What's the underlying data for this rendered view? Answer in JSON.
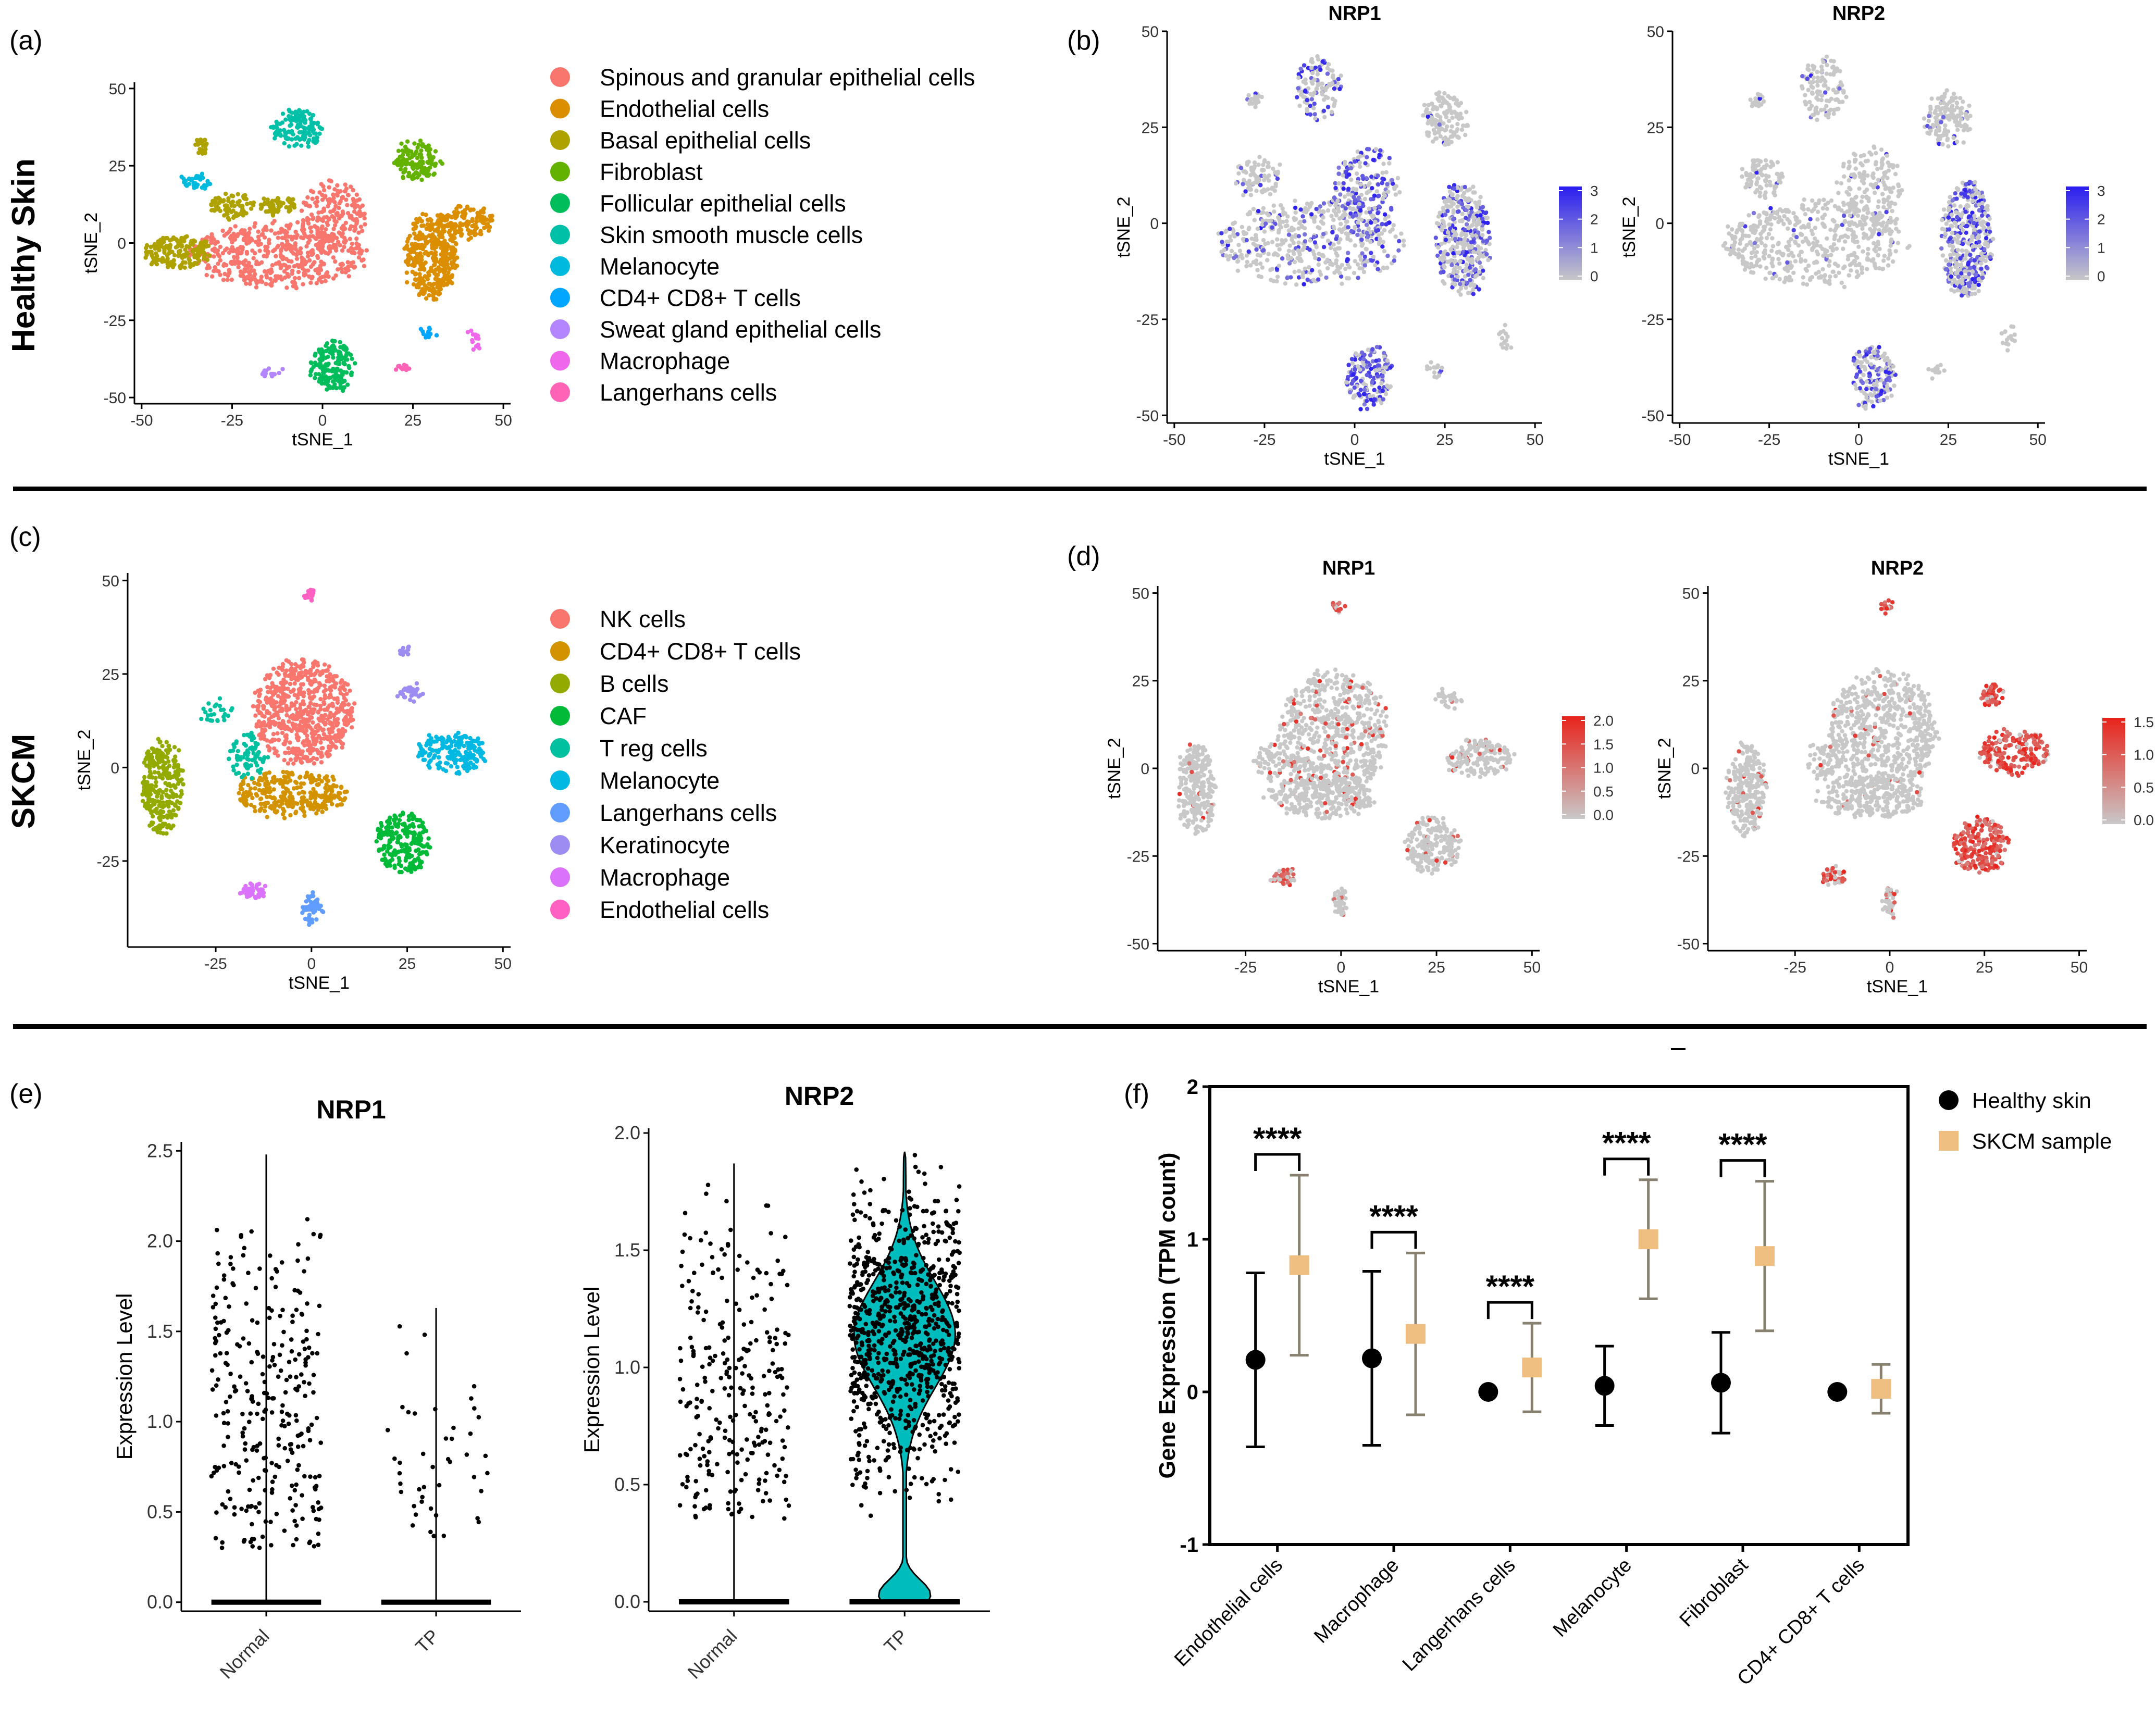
{
  "panel_labels": {
    "a": "(a)",
    "b": "(b)",
    "c": "(c)",
    "d": "(d)",
    "e": "(e)",
    "f": "(f)"
  },
  "row_labels": {
    "healthy": "Healthy Skin",
    "skcm": "SKCM"
  },
  "colors": {
    "grey": "#c8c8c8",
    "blue_high": "#2a1df0",
    "red_high": "#e8231b",
    "teal": "#00bdbd",
    "tan": "#efbf82",
    "olive": "#87806e"
  },
  "chart_data": [
    {
      "id": "a",
      "type": "scatter",
      "title": "",
      "xlabel": "tSNE_1",
      "ylabel": "tSNE_2",
      "xlim": [
        -52,
        52
      ],
      "ylim": [
        -52,
        52
      ],
      "xticks": [
        -50,
        -25,
        0,
        25,
        50
      ],
      "yticks": [
        50,
        25,
        0,
        -25,
        -50
      ],
      "legend": [
        {
          "name": "Spinous and granular epithelial cells",
          "color": "#f8766d"
        },
        {
          "name": "Endothelial cells",
          "color": "#db8e00"
        },
        {
          "name": "Basal epithelial cells",
          "color": "#aea200"
        },
        {
          "name": "Fibroblast",
          "color": "#64b200"
        },
        {
          "name": "Follicular epithelial cells",
          "color": "#00bd5c"
        },
        {
          "name": "Skin smooth muscle cells",
          "color": "#00c1a7"
        },
        {
          "name": "Melanocyte",
          "color": "#00bade"
        },
        {
          "name": "CD4+ CD8+ T cells",
          "color": "#00a6ff"
        },
        {
          "name": "Sweat gland epithelial cells",
          "color": "#b385ff"
        },
        {
          "name": "Macrophage",
          "color": "#ef67eb"
        },
        {
          "name": "Langerhans cells",
          "color": "#ff63b6"
        }
      ],
      "clusters": [
        {
          "cx": -12,
          "cy": -4,
          "rx": 25,
          "ry": 10,
          "n": 480,
          "c": 0
        },
        {
          "cx": 3,
          "cy": 8,
          "rx": 9,
          "ry": 12,
          "n": 200,
          "c": 0
        },
        {
          "cx": 30,
          "cy": -4,
          "rx": 7,
          "ry": 14,
          "n": 380,
          "c": 1
        },
        {
          "cx": 40,
          "cy": 7,
          "rx": 7,
          "ry": 5,
          "n": 120,
          "c": 1
        },
        {
          "cx": -40,
          "cy": -3,
          "rx": 9,
          "ry": 5,
          "n": 190,
          "c": 2
        },
        {
          "cx": -25,
          "cy": 12,
          "rx": 6,
          "ry": 4,
          "n": 80,
          "c": 2
        },
        {
          "cx": -12,
          "cy": 12,
          "rx": 5,
          "ry": 3,
          "n": 60,
          "c": 2
        },
        {
          "cx": -33,
          "cy": 32,
          "rx": 2,
          "ry": 3,
          "n": 25,
          "c": 2
        },
        {
          "cx": 26,
          "cy": 27,
          "rx": 6,
          "ry": 7,
          "n": 130,
          "c": 3
        },
        {
          "cx": 3,
          "cy": -40,
          "rx": 6,
          "ry": 8,
          "n": 170,
          "c": 4
        },
        {
          "cx": -7,
          "cy": 37,
          "rx": 7,
          "ry": 6,
          "n": 130,
          "c": 5
        },
        {
          "cx": -35,
          "cy": 20,
          "rx": 5,
          "ry": 2,
          "n": 35,
          "c": 6
        },
        {
          "cx": 29,
          "cy": -29,
          "rx": 2,
          "ry": 2,
          "n": 15,
          "c": 7
        },
        {
          "cx": -14,
          "cy": -42,
          "rx": 3,
          "ry": 1,
          "n": 15,
          "c": 8
        },
        {
          "cx": 42,
          "cy": -31,
          "rx": 1.5,
          "ry": 3,
          "n": 15,
          "c": 9
        },
        {
          "cx": 22,
          "cy": -40,
          "rx": 1.5,
          "ry": 1.2,
          "n": 12,
          "c": 10
        }
      ]
    },
    {
      "id": "b",
      "type": "scatter",
      "title": "NRP1",
      "xlabel": "tSNE_1",
      "ylabel": "tSNE_2",
      "xlim": [
        -52,
        52
      ],
      "ylim": [
        -52,
        50
      ],
      "xticks": [
        -50,
        -25,
        0,
        25,
        50
      ],
      "yticks": [
        50,
        25,
        0,
        -25,
        -50
      ],
      "colorbar": {
        "ticks": [
          "3",
          "2",
          "1",
          "0"
        ],
        "low": "#c8c8c8",
        "high": "#2a1df0"
      },
      "hi": [
        0.25,
        0.55,
        0.35,
        0.15,
        0.35,
        0.05,
        0.05,
        0.6,
        0.05,
        0.05
      ],
      "clusters": [
        {
          "cx": -12,
          "cy": -5,
          "rx": 26,
          "ry": 11,
          "n": 480
        },
        {
          "cx": 3,
          "cy": 8,
          "rx": 9,
          "ry": 12,
          "n": 200
        },
        {
          "cx": 30,
          "cy": -4,
          "rx": 7,
          "ry": 15,
          "n": 420
        },
        {
          "cx": -27,
          "cy": 12,
          "rx": 6,
          "ry": 5,
          "n": 90
        },
        {
          "cx": -10,
          "cy": 35,
          "rx": 6,
          "ry": 8,
          "n": 120
        },
        {
          "cx": 25,
          "cy": 27,
          "rx": 6,
          "ry": 7,
          "n": 140
        },
        {
          "cx": -28,
          "cy": 32,
          "rx": 2,
          "ry": 2,
          "n": 20
        },
        {
          "cx": 4,
          "cy": -40,
          "rx": 6,
          "ry": 8,
          "n": 170
        },
        {
          "cx": 22,
          "cy": -38,
          "rx": 2,
          "ry": 2,
          "n": 15
        },
        {
          "cx": 42,
          "cy": -30,
          "rx": 1.5,
          "ry": 3,
          "n": 15
        }
      ]
    },
    {
      "id": "b2",
      "type": "scatter",
      "title": "NRP2",
      "xlabel": "tSNE_1",
      "ylabel": "tSNE_2",
      "xlim": [
        -52,
        52
      ],
      "ylim": [
        -52,
        50
      ],
      "xticks": [
        -50,
        -25,
        0,
        25,
        50
      ],
      "yticks": [
        50,
        25,
        0,
        -25,
        -50
      ],
      "colorbar": {
        "ticks": [
          "3",
          "2",
          "1",
          "0"
        ],
        "low": "#c8c8c8",
        "high": "#2a1df0"
      },
      "hi": [
        0.03,
        0.05,
        0.5,
        0.05,
        0.1,
        0.05,
        0.05,
        0.45,
        0.05,
        0.3
      ],
      "clusters": [
        {
          "cx": -12,
          "cy": -5,
          "rx": 26,
          "ry": 11,
          "n": 480
        },
        {
          "cx": 3,
          "cy": 8,
          "rx": 9,
          "ry": 12,
          "n": 200
        },
        {
          "cx": 30,
          "cy": -4,
          "rx": 7,
          "ry": 15,
          "n": 420
        },
        {
          "cx": -27,
          "cy": 12,
          "rx": 6,
          "ry": 5,
          "n": 90
        },
        {
          "cx": -10,
          "cy": 35,
          "rx": 6,
          "ry": 8,
          "n": 120
        },
        {
          "cx": 25,
          "cy": 27,
          "rx": 6,
          "ry": 7,
          "n": 140
        },
        {
          "cx": -28,
          "cy": 32,
          "rx": 2,
          "ry": 2,
          "n": 20
        },
        {
          "cx": 4,
          "cy": -40,
          "rx": 6,
          "ry": 8,
          "n": 170
        },
        {
          "cx": 22,
          "cy": -38,
          "rx": 2,
          "ry": 2,
          "n": 15
        },
        {
          "cx": 42,
          "cy": -30,
          "rx": 1.5,
          "ry": 3,
          "n": 15
        }
      ]
    },
    {
      "id": "c",
      "type": "scatter",
      "title": "",
      "xlabel": "tSNE_1",
      "ylabel": "tSNE_2",
      "xlim": [
        -48,
        52
      ],
      "ylim": [
        -48,
        52
      ],
      "xticks": [
        -25,
        0,
        25,
        50
      ],
      "yticks": [
        50,
        25,
        0,
        -25
      ],
      "legend": [
        {
          "name": "NK cells",
          "color": "#f8766d"
        },
        {
          "name": "CD4+ CD8+ T cells",
          "color": "#d39200"
        },
        {
          "name": "B cells",
          "color": "#93aa00"
        },
        {
          "name": "CAF",
          "color": "#00ba38"
        },
        {
          "name": "T reg cells",
          "color": "#00c19f"
        },
        {
          "name": "Melanocyte",
          "color": "#00b9e3"
        },
        {
          "name": "Langerhans cells",
          "color": "#619cff"
        },
        {
          "name": "Keratinocyte",
          "color": "#9d8cf2"
        },
        {
          "name": "Macrophage",
          "color": "#db72fb"
        },
        {
          "name": "Endothelial cells",
          "color": "#ff61c3"
        }
      ],
      "clusters": [
        {
          "cx": -2,
          "cy": 15,
          "rx": 13,
          "ry": 14,
          "n": 650,
          "c": 0
        },
        {
          "cx": -5,
          "cy": -7,
          "rx": 14,
          "ry": 6,
          "n": 300,
          "c": 1
        },
        {
          "cx": -39,
          "cy": -5,
          "rx": 5,
          "ry": 13,
          "n": 280,
          "c": 2
        },
        {
          "cx": 24,
          "cy": -20,
          "rx": 7,
          "ry": 8,
          "n": 220,
          "c": 3
        },
        {
          "cx": -17,
          "cy": 3,
          "rx": 5,
          "ry": 6,
          "n": 80,
          "c": 4
        },
        {
          "cx": -25,
          "cy": 15,
          "rx": 4,
          "ry": 3,
          "n": 25,
          "c": 4
        },
        {
          "cx": 37,
          "cy": 4,
          "rx": 9,
          "ry": 5,
          "n": 200,
          "c": 5
        },
        {
          "cx": 0,
          "cy": -38,
          "rx": 2,
          "ry": 4,
          "n": 55,
          "c": 6
        },
        {
          "cx": 26,
          "cy": 20,
          "rx": 3,
          "ry": 2,
          "n": 35,
          "c": 7
        },
        {
          "cx": 24,
          "cy": 31,
          "rx": 1.5,
          "ry": 1,
          "n": 12,
          "c": 7
        },
        {
          "cx": -15,
          "cy": -33,
          "rx": 3,
          "ry": 2,
          "n": 40,
          "c": 8
        },
        {
          "cx": -1,
          "cy": 46,
          "rx": 1.5,
          "ry": 1.5,
          "n": 18,
          "c": 9
        }
      ]
    },
    {
      "id": "d",
      "type": "scatter",
      "title": "NRP1",
      "xlabel": "tSNE_1",
      "ylabel": "tSNE_2",
      "xlim": [
        -48,
        52
      ],
      "ylim": [
        -52,
        52
      ],
      "xticks": [
        -25,
        0,
        25,
        50
      ],
      "yticks": [
        50,
        25,
        0,
        -25,
        -50
      ],
      "colorbar": {
        "ticks": [
          "2.0",
          "1.5",
          "1.0",
          "0.5",
          "0.0"
        ],
        "low": "#c8c8c8",
        "high": "#e8231b"
      },
      "hi": [
        0.08,
        0.05,
        0.04,
        0.05,
        0.1,
        0.05,
        0.1,
        0.05,
        0.5,
        0.8
      ],
      "clusters": [
        {
          "cx": -2,
          "cy": 10,
          "rx": 14,
          "ry": 18,
          "n": 650
        },
        {
          "cx": -5,
          "cy": -8,
          "rx": 14,
          "ry": 6,
          "n": 280
        },
        {
          "cx": -38,
          "cy": -6,
          "rx": 5,
          "ry": 13,
          "n": 260
        },
        {
          "cx": 24,
          "cy": -22,
          "rx": 7,
          "ry": 8,
          "n": 200
        },
        {
          "cx": -18,
          "cy": 2,
          "rx": 4,
          "ry": 5,
          "n": 60
        },
        {
          "cx": 36,
          "cy": 3,
          "rx": 9,
          "ry": 5,
          "n": 170
        },
        {
          "cx": 0,
          "cy": -38,
          "rx": 1.5,
          "ry": 4,
          "n": 50
        },
        {
          "cx": 28,
          "cy": 20,
          "rx": 3,
          "ry": 2,
          "n": 30
        },
        {
          "cx": -15,
          "cy": -31,
          "rx": 3,
          "ry": 2,
          "n": 45
        },
        {
          "cx": -1,
          "cy": 46,
          "rx": 1.5,
          "ry": 1.5,
          "n": 18
        }
      ]
    },
    {
      "id": "d2",
      "type": "scatter",
      "title": "NRP2",
      "xlabel": "tSNE_1",
      "ylabel": "tSNE_2",
      "xlim": [
        -48,
        52
      ],
      "ylim": [
        -52,
        52
      ],
      "xticks": [
        -25,
        0,
        25,
        50
      ],
      "yticks": [
        50,
        25,
        0,
        -25,
        -50
      ],
      "colorbar": {
        "ticks": [
          "1.5",
          "1.0",
          "0.5",
          "0.0"
        ],
        "low": "#c8c8c8",
        "high": "#e8231b"
      },
      "hi": [
        0.03,
        0.03,
        0.08,
        0.95,
        0.05,
        0.9,
        0.3,
        0.95,
        0.6,
        0.8
      ],
      "clusters": [
        {
          "cx": -2,
          "cy": 10,
          "rx": 14,
          "ry": 18,
          "n": 650
        },
        {
          "cx": -5,
          "cy": -8,
          "rx": 14,
          "ry": 6,
          "n": 280
        },
        {
          "cx": -38,
          "cy": -6,
          "rx": 5,
          "ry": 13,
          "n": 260
        },
        {
          "cx": 24,
          "cy": -22,
          "rx": 7,
          "ry": 8,
          "n": 220
        },
        {
          "cx": -18,
          "cy": 2,
          "rx": 4,
          "ry": 5,
          "n": 60
        },
        {
          "cx": 33,
          "cy": 5,
          "rx": 9,
          "ry": 6,
          "n": 200
        },
        {
          "cx": 0,
          "cy": -38,
          "rx": 1.5,
          "ry": 4,
          "n": 50
        },
        {
          "cx": 27,
          "cy": 21,
          "rx": 3,
          "ry": 3,
          "n": 50
        },
        {
          "cx": -15,
          "cy": -31,
          "rx": 3,
          "ry": 2,
          "n": 45
        },
        {
          "cx": -1,
          "cy": 46,
          "rx": 1.5,
          "ry": 1.5,
          "n": 18
        }
      ]
    },
    {
      "id": "e1",
      "type": "violin",
      "title": "NRP1",
      "ylabel": "Expression Level",
      "categories": [
        "Normal",
        "TP"
      ],
      "ylim": [
        -0.05,
        2.55
      ],
      "yticks": [
        "0.0",
        "0.5",
        "1.0",
        "1.5",
        "2.0",
        "2.5"
      ],
      "max": [
        2.48,
        1.63
      ],
      "fill": "none",
      "dots": [
        {
          "n": 290,
          "min": 0.3,
          "max": 2.48
        },
        {
          "n": 45,
          "min": 0.35,
          "max": 1.63
        }
      ]
    },
    {
      "id": "e2",
      "type": "violin",
      "title": "NRP2",
      "ylabel": "Expression Level",
      "categories": [
        "Normal",
        "TP"
      ],
      "ylim": [
        -0.04,
        2.02
      ],
      "yticks": [
        "0.0",
        "0.5",
        "1.0",
        "1.5",
        "2.0"
      ],
      "max": [
        1.87,
        1.92
      ],
      "fill": "#00bdbd",
      "dots": [
        {
          "n": 260,
          "min": 0.35,
          "max": 1.87
        },
        {
          "n": 850,
          "min": 0.35,
          "max": 1.92
        }
      ]
    },
    {
      "id": "f",
      "type": "scatter",
      "title": "",
      "ylabel": "Gene Expression (TPM count)",
      "ylim": [
        -1,
        2
      ],
      "yticks": [
        "2",
        "1",
        "0",
        "-1"
      ],
      "categories": [
        "Endothelial cells",
        "Macrophage",
        "Langerhans cells",
        "Melanocyte",
        "Fibroblast",
        "CD4+ CD8+ T cells"
      ],
      "series": [
        {
          "name": "Healthy skin",
          "mean": [
            0.21,
            0.22,
            0.0,
            0.04,
            0.06,
            0.0
          ],
          "err": [
            0.57,
            0.57,
            0.0,
            0.26,
            0.33,
            0.0
          ]
        },
        {
          "name": "SKCM sample",
          "mean": [
            0.83,
            0.38,
            0.16,
            1.0,
            0.89,
            0.02
          ],
          "err": [
            0.59,
            0.53,
            0.29,
            0.39,
            0.49,
            0.16
          ]
        }
      ],
      "significance": [
        {
          "category": 0,
          "label": "****"
        },
        {
          "category": 1,
          "label": "****"
        },
        {
          "category": 2,
          "label": "****"
        },
        {
          "category": 3,
          "label": "****"
        },
        {
          "category": 4,
          "label": "****"
        }
      ]
    }
  ]
}
